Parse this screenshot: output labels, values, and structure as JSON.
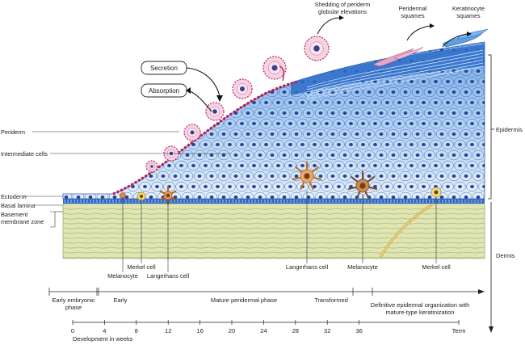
{
  "top_labels": {
    "shedding": [
      "Shedding of periderm",
      "globular elevations"
    ],
    "peridermal_squames": [
      "Peridermal",
      "squames"
    ],
    "keratinocyte_squames": [
      "Keratinocyte",
      "squames"
    ]
  },
  "boxes": {
    "secretion": "Secretion",
    "absorption": "Absorption"
  },
  "left_labels": {
    "periderm": "Periderm",
    "intermediate_cells": "Intermediate cells",
    "ectoderm": "Ectoderm",
    "basal_lamina": "Basal lamina",
    "basement_membrane_zone": [
      "Basement",
      "membrane zone"
    ]
  },
  "right_labels": {
    "epidermis": "Epidermis",
    "dermis": "Dermis"
  },
  "bottom_cell_labels": {
    "melanocyte_left": "Melanocyte",
    "merkel_left": "Merkel cell",
    "langerhans_left": "Langerhans cell",
    "langerhans_right": "Langerhans cell",
    "melanocyte_right": "Melanocyte",
    "merkel_right": "Merkel cell"
  },
  "phases": {
    "early_embryonic": [
      "Early embryonic",
      "phase"
    ],
    "early": "Early",
    "mature_peridermal": "Mature peridermal phase",
    "transformed": "Transformed",
    "definitive": [
      "Definitive epidermal organization with",
      "mature-type keratinization"
    ]
  },
  "timeline": {
    "ticks": [
      "0",
      "4",
      "8",
      "12",
      "16",
      "20",
      "24",
      "28",
      "32",
      "36",
      "Term"
    ],
    "axis_label": "Development in weeks"
  }
}
